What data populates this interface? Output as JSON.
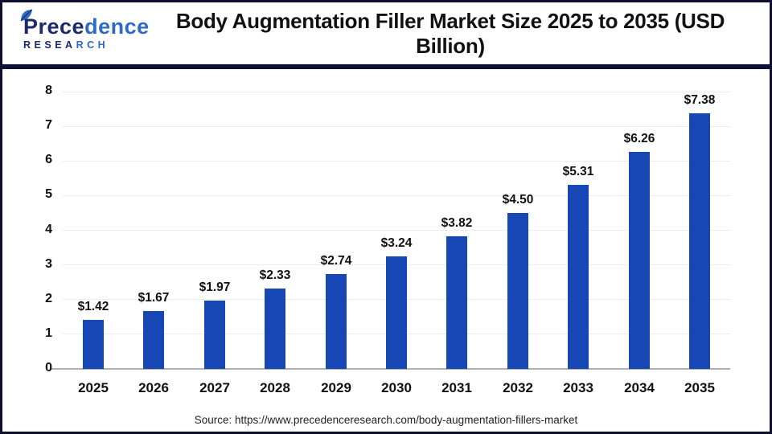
{
  "header": {
    "title": "Body Augmentation Filler Market Size 2025 to 2035 (USD Billion)",
    "logo": {
      "word_dark": "Prece",
      "word_light": "dence",
      "sub_dark": "RESEA",
      "sub_light": "RCH"
    }
  },
  "chart_data": {
    "type": "bar",
    "title": "Body Augmentation Filler Market Size 2025 to 2035 (USD Billion)",
    "categories": [
      "2025",
      "2026",
      "2027",
      "2028",
      "2029",
      "2030",
      "2031",
      "2032",
      "2033",
      "2034",
      "2035"
    ],
    "values": [
      1.42,
      1.67,
      1.97,
      2.33,
      2.74,
      3.24,
      3.82,
      4.5,
      5.31,
      6.26,
      7.38
    ],
    "value_labels": [
      "$1.42",
      "$1.67",
      "$1.97",
      "$2.33",
      "$2.74",
      "$3.24",
      "$3.82",
      "$4.50",
      "$5.31",
      "$6.26",
      "$7.38"
    ],
    "xlabel": "",
    "ylabel": "",
    "ylim": [
      0,
      8
    ],
    "yticks": [
      0,
      1,
      2,
      3,
      4,
      5,
      6,
      7,
      8
    ],
    "grid": "horizontal",
    "legend": "none",
    "bar_color": "#1747b4"
  },
  "footer": {
    "source": "Source: https://www.precedenceresearch.com/body-augmentation-fillers-market"
  },
  "colors": {
    "bar": "#1747b4",
    "divider": "#0d1135",
    "frame_border": "#0c102e",
    "logo_dark": "#1b2a6b",
    "logo_light": "#2f6bc6",
    "gridline": "#ededed",
    "baseline": "#b0b0b0"
  }
}
